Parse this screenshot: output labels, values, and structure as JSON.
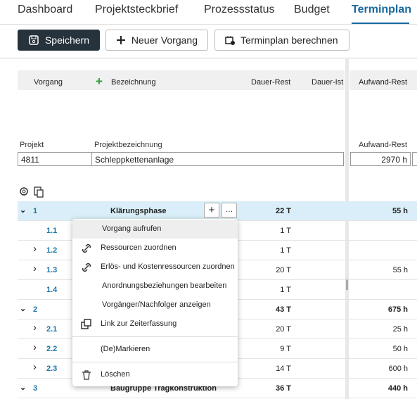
{
  "tabs": [
    "Dashboard",
    "Projektsteckbrief",
    "Prozessstatus",
    "Budget",
    "Terminplan"
  ],
  "toolbar": {
    "save": "Speichern",
    "new_task": "Neuer Vorgang",
    "calculate": "Terminplan berechnen"
  },
  "grid": {
    "columns": [
      "Vorgang",
      "Bezeichnung",
      "Dauer-Rest",
      "Dauer-Ist",
      "Aufwand-Rest"
    ],
    "project": {
      "labels": [
        "Projekt",
        "Projektbezeichnung",
        "Aufwand-Rest"
      ],
      "number": "4811",
      "name": "Schleppkettenanlage",
      "effort": "2970 h"
    },
    "rows": [
      {
        "id": "1",
        "name": "Klärungsphase",
        "duration": "22 T",
        "effort": "55 h",
        "level": 1,
        "expandable": true
      },
      {
        "id": "1.1",
        "duration": "1 T",
        "level": 2,
        "expandable": false
      },
      {
        "id": "1.2",
        "duration": "1 T",
        "level": 2,
        "expandable": true
      },
      {
        "id": "1.3",
        "duration": "20 T",
        "effort": "55 h",
        "level": 2,
        "expandable": true
      },
      {
        "id": "1.4",
        "duration": "1 T",
        "level": 2,
        "expandable": false
      },
      {
        "id": "2",
        "duration": "43 T",
        "effort": "675 h",
        "level": 1,
        "expandable": true
      },
      {
        "id": "2.1",
        "duration": "20 T",
        "effort": "25 h",
        "level": 2,
        "expandable": true
      },
      {
        "id": "2.2",
        "duration": "9 T",
        "effort": "50 h",
        "level": 2,
        "expandable": true
      },
      {
        "id": "2.3",
        "duration": "14 T",
        "effort": "600 h",
        "level": 2,
        "expandable": true
      },
      {
        "id": "3",
        "name": "Baugruppe Tragkonstruktion",
        "duration": "36 T",
        "effort": "440 h",
        "level": 1,
        "expandable": true
      }
    ]
  },
  "context_menu": {
    "items": [
      "Vorgang aufrufen",
      "Ressourcen zuordnen",
      "Erlös- und Kostenressourcen zuordnen",
      "Anordnungsbeziehungen bearbeiten",
      "Vorgänger/Nachfolger anzeigen",
      "Link zur Zeiterfassung",
      "(De)Markieren",
      "Löschen"
    ]
  }
}
